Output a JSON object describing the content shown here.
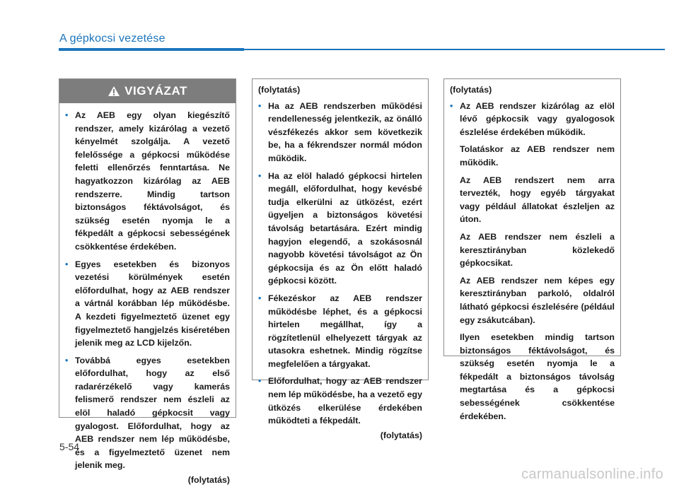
{
  "header": {
    "title": "A gépkocsi vezetése"
  },
  "columns": [
    {
      "heading": "VIGYÁZAT",
      "items": [
        "Az AEB egy olyan kiegészítő rendszer, amely kizárólag a vezető kényelmét szolgálja. A vezető felelőssége a gépkocsi működése feletti ellenőrzés fenntartása. Ne hagyatkozzon kizárólag az AEB rendszerre. Mindig tartson biztonságos féktávolságot, és szükség esetén nyomja le a fékpedált a gépkocsi sebességének csökkentése érdekében.",
        "Egyes esetekben és bizonyos vezetési körülmények esetén előfordulhat, hogy az AEB rendszer a vártnál korábban lép működésbe. A kezdeti figyelmeztető üzenet egy figyelmeztető hangjelzés kiséretében jelenik meg az LCD kijelzőn.",
        "Továbbá egyes esetekben előfordulhat, hogy az első radarérzékelő vagy kamerás felismerő rendszer nem észleli az elöl haladó gépkocsit vagy gyalogost. Előfordulhat, hogy az AEB rendszer nem lép működésbe, és a figyelmeztető üzenet nem jelenik meg."
      ],
      "continued": "(folytatás)"
    },
    {
      "continued_from": "(folytatás)",
      "items": [
        "Ha az AEB rendszerben működési rendellenesség jelentkezik, az önálló vészfékezés akkor sem következik be, ha a fékrendszer normál módon működik.",
        "Ha az elöl haladó gépkocsi hirtelen megáll, előfordulhat, hogy kevésbé tudja elkerülni az ütközést, ezért ügyeljen a biztonságos követési távolság betartására. Ezért mindig hagyjon elegendő, a szokásosnál nagyobb követési távolságot az Ön gépkocsija és az Ön előtt haladó gépkocsi között.",
        "Fékezéskor az AEB rendszer működésbe léphet, és a gépkocsi hirtelen megállhat, így a rögzítetlenül elhelyezett tárgyak az utasokra eshetnek. Mindig rögzítse megfelelően a tárgyakat.",
        "Előfordulhat, hogy az AEB rendszer nem lép működésbe, ha a vezető egy ütközés elkerülése érdekében működteti a fékpedált."
      ],
      "continued": "(folytatás)"
    },
    {
      "continued_from": "(folytatás)",
      "items": [
        "Az AEB rendszer kizárólag az elöl lévő gépkocsik vagy gyalogosok észlelése érdekében működik."
      ],
      "paragraphs": [
        "Tolatáskor az AEB rendszer nem működik.",
        "Az AEB rendszert nem arra tervezték, hogy egyéb tárgyakat vagy például állatokat észleljen az úton.",
        "Az AEB rendszer nem észleli a keresztirányban közlekedő gépkocsikat.",
        "Az AEB rendszer nem képes egy keresztirányban parkoló, oldalról látható gépkocsi észlelésére (például egy zsákutcában).",
        "Ilyen esetekben mindig tartson biztonságos féktávolságot, és szükség esetén nyomja le a fékpedált a biztonságos távolság megtartása és a gépkocsi sebességének csökkentése érdekében."
      ]
    }
  ],
  "page_number": "5-54",
  "watermark": "carmanualsonline.info"
}
